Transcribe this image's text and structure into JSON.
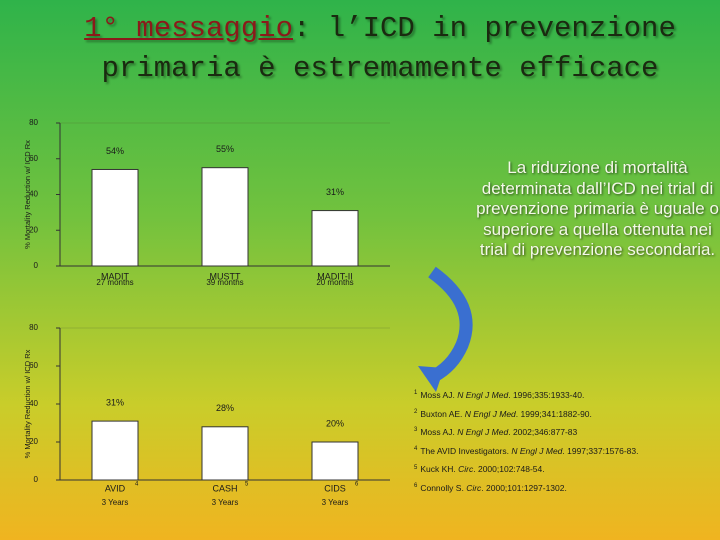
{
  "title": {
    "highlight": "1° messaggio",
    "line1_rest": ": l’ICD in prevenzione",
    "line2": "primaria è estremamente efficace"
  },
  "side_text": "La riduzione di mortalità determinata dall’ICD nei trial di prevenzione primaria è uguale o superiore a quella ottenuta nei trial di prevenzione secondaria.",
  "references": [
    {
      "num": "1",
      "author": "Moss AJ. ",
      "journal": "N Engl J Med",
      "details": ". 1996;335:1933-40."
    },
    {
      "num": "2",
      "author": "Buxton AE. ",
      "journal": "N Engl J Med",
      "details": ". 1999;341:1882-90."
    },
    {
      "num": "3",
      "author": "Moss AJ. ",
      "journal": "N Engl J Med",
      "details": ". 2002;346:877-83"
    },
    {
      "num": "4",
      "author": "The AVID Investigators. ",
      "journal": "N Engl J Med",
      "details": ". 1997;337:1576-83."
    },
    {
      "num": "5",
      "author": "Kuck KH. ",
      "journal": "Circ",
      "details": ". 2000;102:748-54."
    },
    {
      "num": "6",
      "author": "Connolly S. ",
      "journal": "Circ",
      "details": ". 2000;101:1297-1302."
    }
  ],
  "chart_data": [
    {
      "type": "bar",
      "y_label": "% Mortality Reduction w/ ICD Rx",
      "categories": [
        "MADIT",
        "MUSTT",
        "MADIT-II"
      ],
      "periods": [
        "27 months",
        "39 months",
        "20 months"
      ],
      "values": [
        54,
        55,
        31
      ],
      "value_labels": [
        "54%",
        "55%",
        "31%"
      ],
      "color": "#ffffff",
      "ylim": [
        0,
        80
      ],
      "yticks": [
        0,
        20,
        40,
        60,
        80
      ],
      "grid": false
    },
    {
      "type": "bar",
      "y_label": "% Mortality Reduction w/ ICD Rx",
      "categories": [
        "AVID",
        "CASH",
        "CIDS"
      ],
      "category_refs": [
        "4",
        "5",
        "6"
      ],
      "periods": [
        "3 Years",
        "3 Years",
        "3 Years"
      ],
      "values": [
        31,
        28,
        20
      ],
      "value_labels": [
        "31%",
        "28%",
        "20%"
      ],
      "color": "#ffffff",
      "ylim": [
        0,
        80
      ],
      "yticks": [
        0,
        20,
        40,
        60,
        80
      ],
      "grid": false
    }
  ]
}
